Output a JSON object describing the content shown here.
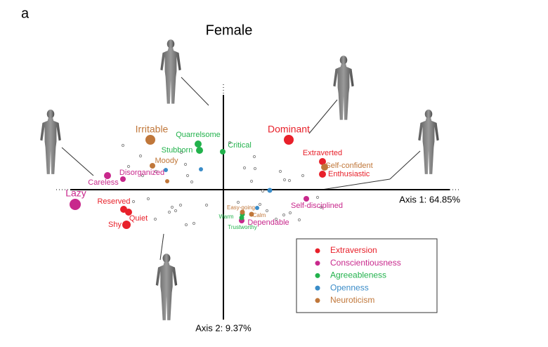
{
  "panel_label": "a",
  "chart_data": {
    "type": "scatter",
    "title": "Female",
    "x_label": "Axis 1: 64.85%",
    "y_label": "Axis 2: 9.37%",
    "xlim": [
      -2.38,
      3.37
    ],
    "ylim": [
      -1.85,
      1.5
    ],
    "background_points": {
      "color": "#8a8a8a",
      "x": [
        -1.43,
        -1.18,
        -1.35,
        -0.6,
        -0.96,
        -0.54,
        -0.51,
        -0.45,
        -1.15,
        -1.07,
        -1.28,
        -0.73,
        -0.68,
        -0.77,
        -0.61,
        -0.53,
        -0.42,
        -0.97,
        0.3,
        0.45,
        0.81,
        0.87,
        1.13,
        0.94,
        0.4,
        0.21,
        0.52,
        0.62,
        0.75,
        0.86,
        0.95,
        1.08,
        1.39,
        1.34,
        0.56,
        -0.24,
        0.09,
        0.44
      ],
      "y": [
        0.63,
        0.48,
        0.33,
        0.53,
        0.26,
        0.36,
        0.2,
        0.11,
        0.2,
        -0.13,
        -0.17,
        -0.25,
        -0.3,
        -0.32,
        -0.22,
        -0.5,
        -0.48,
        -0.42,
        0.31,
        0.3,
        0.26,
        0.14,
        0.2,
        0.13,
        0.12,
        -0.18,
        -0.21,
        -0.3,
        -0.42,
        -0.36,
        -0.33,
        -0.43,
        -0.25,
        -0.11,
        -0.02,
        -0.22,
        0.67,
        0.47
      ]
    },
    "series": [
      {
        "name": "Extraversion",
        "color": "#e8202a",
        "labels": [
          "Dominant",
          "Extraverted",
          "Enthusiastic",
          "Reserved",
          "Quiet",
          "Shy"
        ],
        "x": [
          0.93,
          1.41,
          1.41,
          -1.42,
          -1.35,
          -1.38
        ],
        "y": [
          0.71,
          0.4,
          0.22,
          -0.28,
          -0.32,
          -0.5
        ],
        "sizes": [
          7,
          5,
          5,
          5,
          5,
          6
        ]
      },
      {
        "name": "Conscientiousness",
        "color": "#c8288c",
        "labels": [
          "Lazy",
          "Careless",
          "Disorganized",
          "Self-disciplined",
          "Dependable"
        ],
        "x": [
          -2.11,
          -1.65,
          -1.43,
          1.18,
          0.26
        ],
        "y": [
          -0.21,
          0.2,
          0.15,
          -0.13,
          -0.44
        ],
        "sizes": [
          8,
          5,
          4,
          4,
          4
        ]
      },
      {
        "name": "Agreeableness",
        "color": "#22b24c",
        "labels": [
          "Quarrelsome",
          "Stubborn",
          "Critical",
          "Warm",
          "Trustworthy"
        ],
        "x": [
          -0.36,
          -0.34,
          -0.01,
          0.27,
          0.26
        ],
        "y": [
          0.65,
          0.56,
          0.54,
          -0.35,
          -0.4
        ],
        "sizes": [
          5,
          5,
          4,
          3.5,
          3.5
        ]
      },
      {
        "name": "Openness",
        "color": "#3a8cc8",
        "labels": [
          null,
          null,
          null,
          null
        ],
        "x": [
          -0.82,
          -0.32,
          0.66,
          0.48
        ],
        "y": [
          0.28,
          0.29,
          -0.01,
          -0.26
        ],
        "sizes": [
          3,
          3,
          3.5,
          3
        ]
      },
      {
        "name": "Neuroticism",
        "color": "#c0773a",
        "labels": [
          "Irritable",
          "Moody",
          null,
          "Easy-going",
          "Calm",
          "Self-confident"
        ],
        "x": [
          -1.04,
          -1.01,
          -0.8,
          0.27,
          0.4,
          1.44
        ],
        "y": [
          0.71,
          0.34,
          0.12,
          -0.32,
          -0.35,
          0.32
        ],
        "sizes": [
          7,
          4,
          3,
          3.5,
          3.5,
          5
        ]
      }
    ],
    "legend_position": "lower right"
  }
}
